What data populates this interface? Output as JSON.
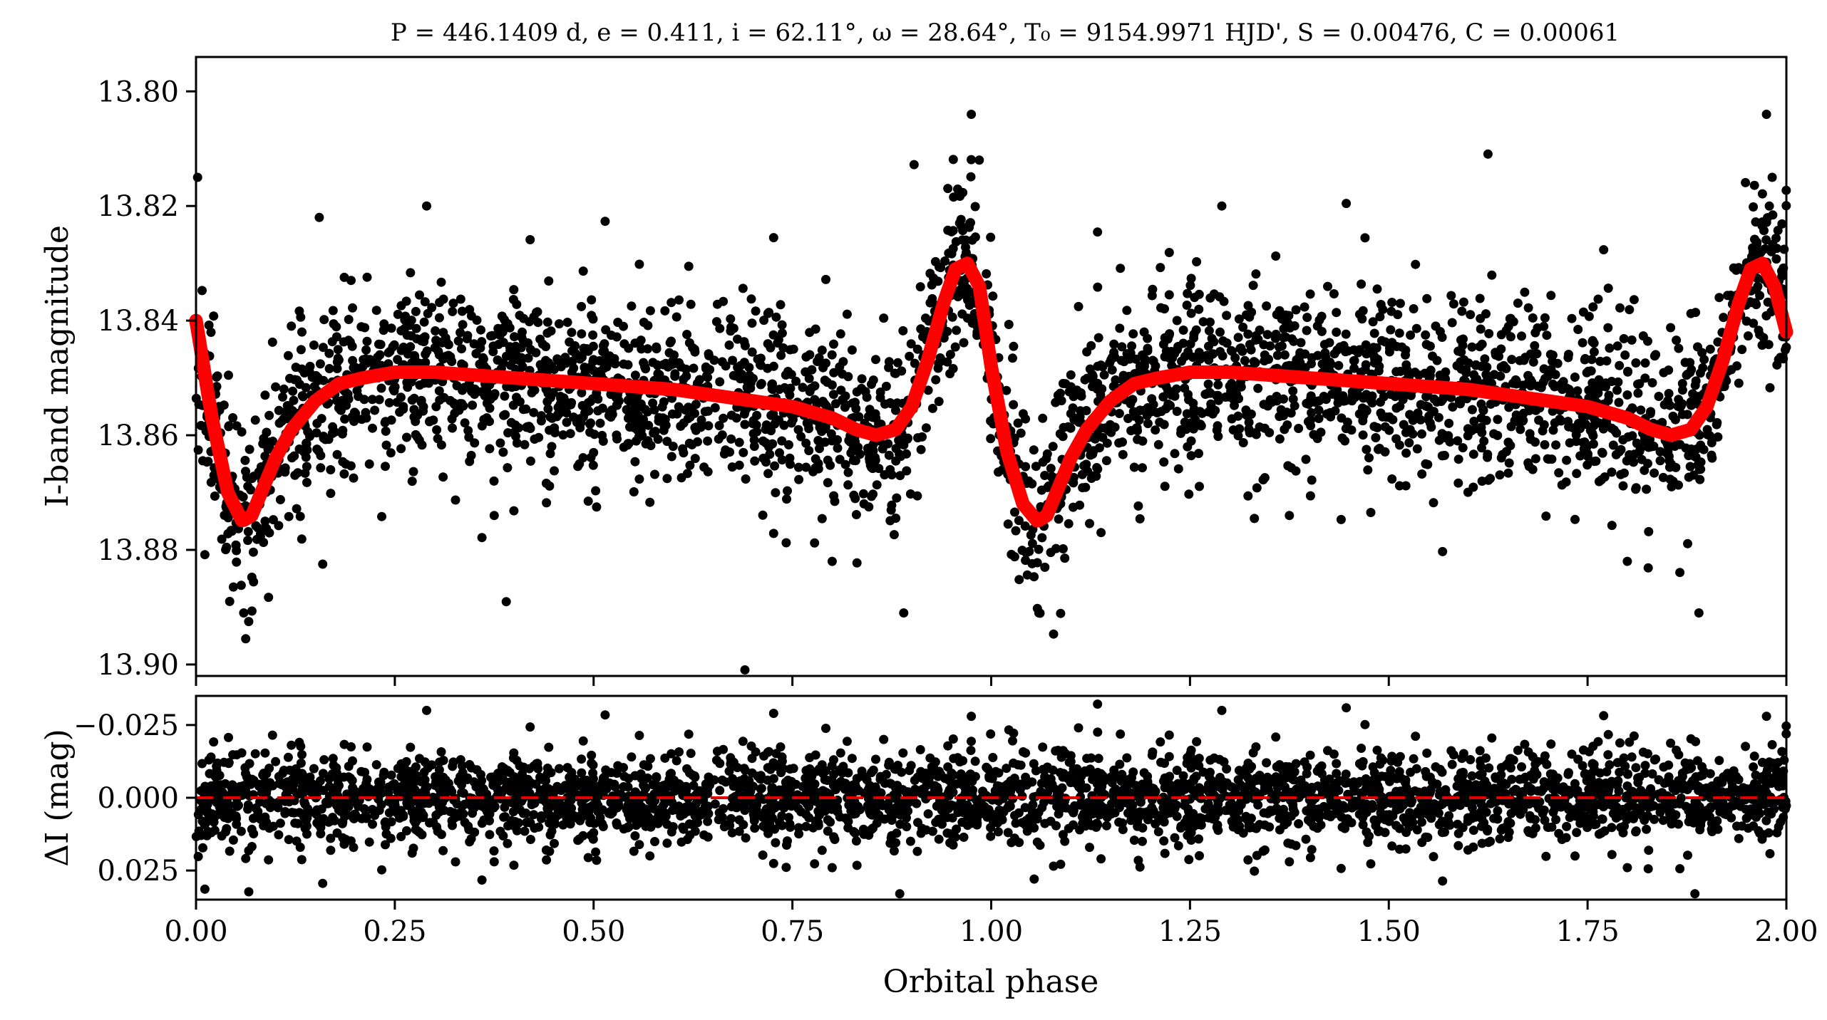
{
  "title": "P = 446.1409 d, e = 0.411, i = 62.11°, ω = 28.64°, T₀ = 9154.9971 HJD', S = 0.00476, C = 0.00061",
  "chart_data": [
    {
      "type": "scatter",
      "panel": "main",
      "ylabel": "I-band magnitude",
      "xlabel": "",
      "xlim": [
        0.0,
        2.0
      ],
      "ylim": [
        13.902,
        13.794
      ],
      "y_inverted": true,
      "yticks": [
        13.8,
        13.82,
        13.84,
        13.86,
        13.88,
        13.9
      ],
      "ytick_labels": [
        "13.80",
        "13.82",
        "13.84",
        "13.86",
        "13.88",
        "13.90"
      ],
      "point_color": "#000000",
      "model_color": "#ff0000",
      "series": [
        {
          "kind": "model_curve",
          "x": [
            0.0,
            0.02,
            0.04,
            0.058,
            0.07,
            0.085,
            0.1,
            0.12,
            0.15,
            0.18,
            0.21,
            0.25,
            0.3,
            0.4,
            0.5,
            0.6,
            0.65,
            0.7,
            0.75,
            0.8,
            0.83,
            0.855,
            0.88,
            0.9,
            0.92,
            0.94,
            0.955,
            0.97,
            0.985,
            1.0,
            1.02,
            1.04,
            1.058,
            1.07,
            1.085,
            1.1,
            1.12,
            1.15,
            1.18,
            1.21,
            1.25,
            1.3,
            1.4,
            1.5,
            1.6,
            1.65,
            1.7,
            1.75,
            1.8,
            1.83,
            1.855,
            1.88,
            1.9,
            1.92,
            1.94,
            1.955,
            1.97,
            1.985,
            2.0
          ],
          "y": [
            13.84,
            13.857,
            13.87,
            13.875,
            13.874,
            13.869,
            13.864,
            13.859,
            13.854,
            13.851,
            13.85,
            13.849,
            13.849,
            13.85,
            13.851,
            13.852,
            13.853,
            13.854,
            13.855,
            13.857,
            13.859,
            13.86,
            13.859,
            13.855,
            13.847,
            13.837,
            13.831,
            13.83,
            13.834,
            13.848,
            13.863,
            13.872,
            13.875,
            13.874,
            13.869,
            13.864,
            13.859,
            13.854,
            13.851,
            13.85,
            13.849,
            13.849,
            13.85,
            13.851,
            13.852,
            13.853,
            13.854,
            13.855,
            13.857,
            13.859,
            13.86,
            13.859,
            13.855,
            13.847,
            13.837,
            13.831,
            13.83,
            13.834,
            13.842
          ]
        },
        {
          "kind": "observations",
          "name": "",
          "n_points": 3200,
          "scatter_mag": 0.0075,
          "outliers_x": [
            0.002,
            0.06,
            0.155,
            0.29,
            0.375,
            0.8,
            0.89,
            0.975,
            0.985,
            1.06,
            1.29,
            1.375,
            1.8,
            1.89,
            1.975
          ],
          "outliers_y": [
            13.815,
            13.891,
            13.822,
            13.82,
            13.874,
            13.882,
            13.891,
            13.804,
            13.812,
            13.891,
            13.82,
            13.874,
            13.882,
            13.891,
            13.804
          ]
        }
      ]
    },
    {
      "type": "scatter",
      "panel": "residuals",
      "ylabel": "ΔI (mag)",
      "xlabel": "Orbital phase",
      "xlim": [
        0.0,
        2.0
      ],
      "ylim": [
        0.035,
        -0.035
      ],
      "y_inverted": true,
      "yticks": [
        -0.025,
        0.0,
        0.025
      ],
      "ytick_labels": [
        "−0.025",
        "0.000",
        "0.025"
      ],
      "xticks": [
        0.0,
        0.25,
        0.5,
        0.75,
        1.0,
        1.25,
        1.5,
        1.75,
        2.0
      ],
      "xtick_labels": [
        "0.00",
        "0.25",
        "0.50",
        "0.75",
        "1.00",
        "1.25",
        "1.50",
        "1.75",
        "2.00"
      ],
      "reference_line": {
        "y": 0.0,
        "style": "dashed",
        "color": "#e00000"
      },
      "series": [
        {
          "kind": "residuals",
          "name": "",
          "n_points": 3200,
          "scatter_mag": 0.0075,
          "outliers_x": [
            0.885,
            0.375,
            0.8,
            0.29,
            1.885,
            1.375,
            1.8,
            1.29,
            0.975,
            1.975
          ],
          "outliers_y": [
            0.033,
            0.022,
            0.024,
            -0.03,
            0.033,
            0.022,
            0.024,
            -0.03,
            -0.028,
            -0.028
          ]
        }
      ]
    }
  ]
}
